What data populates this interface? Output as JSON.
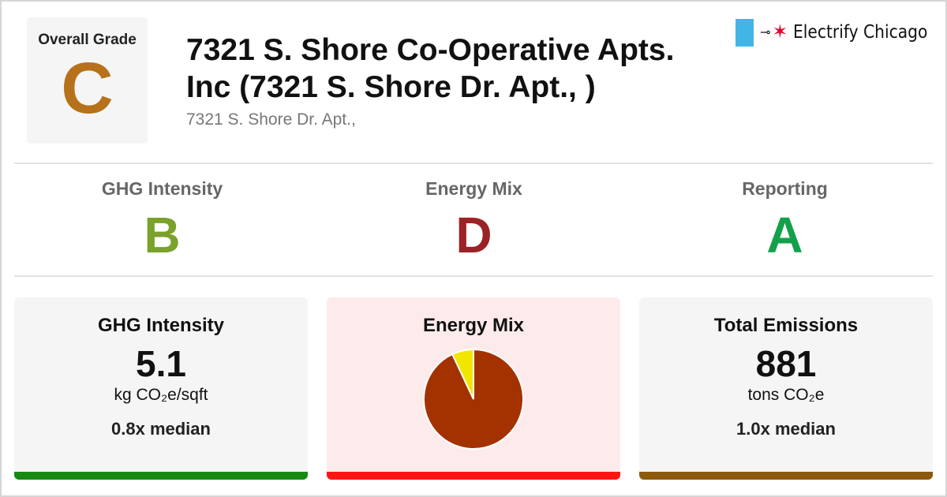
{
  "header": {
    "overall_grade_label": "Overall Grade",
    "overall_grade": "C",
    "overall_grade_color": "#b7711b",
    "title_line1": "7321 S. Shore Co-Operative Apts.",
    "title_line2": "Inc (7321 S. Shore Dr. Apt., )",
    "address": "7321 S. Shore Dr. Apt.,"
  },
  "logo": {
    "icon": "plug-icon",
    "star_icon": "chicago-star-icon",
    "name": "Electrify Chicago"
  },
  "grades": [
    {
      "label": "GHG Intensity",
      "grade": "B",
      "color": "#7aa12b"
    },
    {
      "label": "Energy Mix",
      "grade": "D",
      "color": "#9b2226"
    },
    {
      "label": "Reporting",
      "grade": "A",
      "color": "#12a14a"
    }
  ],
  "cards": {
    "ghg": {
      "title": "GHG Intensity",
      "value": "5.1",
      "unit": "kg CO₂e/sqft",
      "median": "0.8x median",
      "bar_color": "#178a14",
      "bg": "#f5f5f5"
    },
    "energy": {
      "title": "Energy Mix",
      "bar_color": "#ff1414",
      "bg": "#fdebec"
    },
    "emissions": {
      "title": "Total Emissions",
      "value": "881",
      "unit": "tons CO₂e",
      "median": "1.0x median",
      "bar_color": "#8c5a0c",
      "bg": "#f5f5f5"
    }
  },
  "chart_data": {
    "type": "pie",
    "slices": [
      {
        "value": 93,
        "color": "#a33200"
      },
      {
        "value": 7,
        "color": "#f2e600"
      }
    ]
  }
}
